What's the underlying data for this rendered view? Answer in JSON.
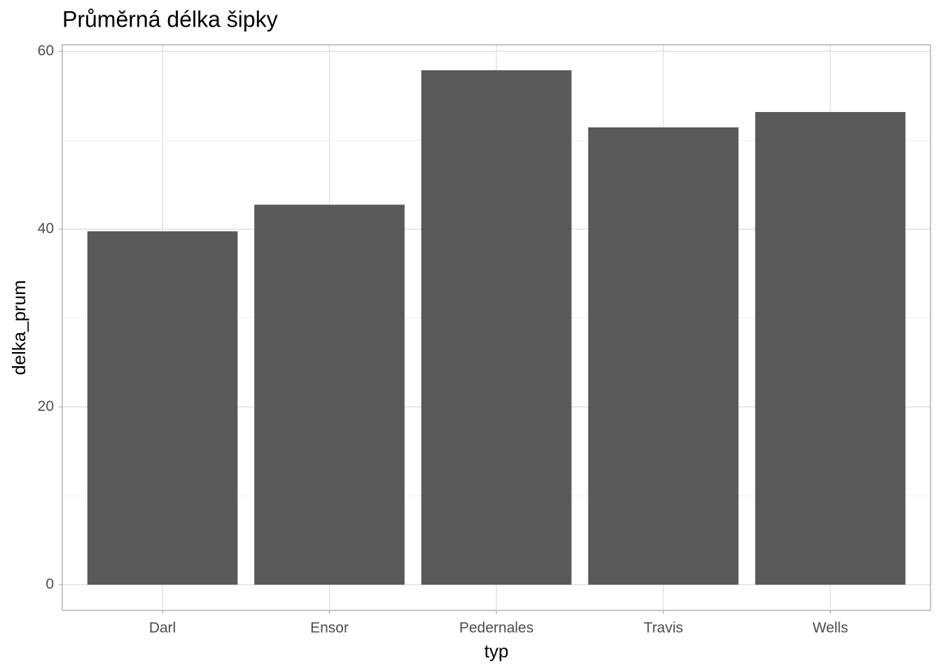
{
  "chart_data": {
    "type": "bar",
    "title": "Průměrná délka šipky",
    "x_label": "typ",
    "y_label": "delka_prum",
    "categories": [
      "Darl",
      "Ensor",
      "Pedernales",
      "Travis",
      "Wells"
    ],
    "values": [
      39.76,
      42.75,
      57.88,
      51.45,
      53.18
    ],
    "color": "#595959",
    "ylim": [
      -2.89,
      60.74
    ],
    "yticks": [
      0,
      20,
      40,
      60
    ],
    "y_minor_ticks": [
      10,
      30,
      50
    ],
    "grid": true
  }
}
